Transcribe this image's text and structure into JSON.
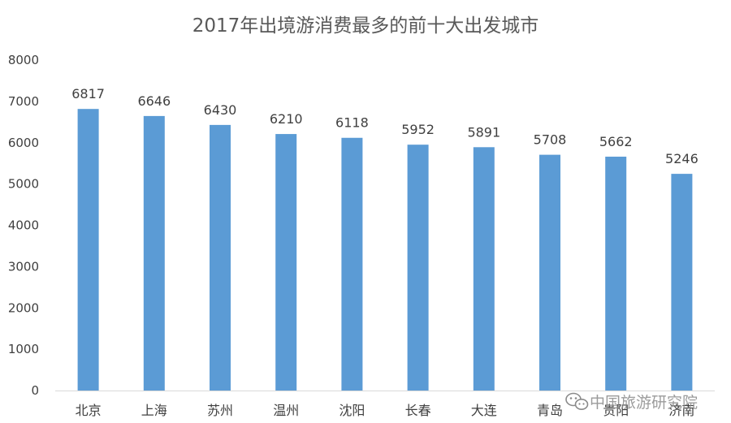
{
  "chart_data": {
    "type": "bar",
    "title": "2017年出境游消费最多的前十大出发城市",
    "xlabel": "",
    "ylabel": "",
    "categories": [
      "北京",
      "上海",
      "苏州",
      "温州",
      "沈阳",
      "长春",
      "大连",
      "青岛",
      "贵阳",
      "济南"
    ],
    "values": [
      6817,
      6646,
      6430,
      6210,
      6118,
      5952,
      5891,
      5708,
      5662,
      5246
    ],
    "ylim": [
      0,
      8000
    ],
    "yticks": [
      0,
      1000,
      2000,
      3000,
      4000,
      5000,
      6000,
      7000,
      8000
    ],
    "grid": false,
    "legend": "none",
    "bar_color": "#5b9bd5",
    "axis_color": "#d9d9d9"
  },
  "watermark": {
    "text": "中国旅游研究院",
    "icon": "wechat-icon"
  }
}
